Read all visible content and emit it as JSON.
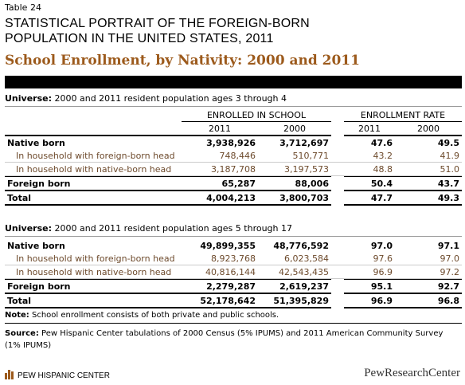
{
  "header": {
    "table_label": "Table 24",
    "title_lines": [
      "STATISTICAL PORTRAIT OF THE FOREIGN-BORN",
      "POPULATION IN THE UNITED STATES, 2011"
    ],
    "subtitle": "School Enrollment, by Nativity: 2000 and 2011"
  },
  "sections": [
    {
      "universe_label": "Universe:",
      "universe_text": "2000 and 2011 resident population ages 3 through 4",
      "column_groups": [
        "ENROLLED IN SCHOOL",
        "ENROLLMENT RATE"
      ],
      "columns": [
        "2011",
        "2000",
        "2011",
        "2000"
      ],
      "rows": [
        [
          "Native born",
          "3,938,926",
          "3,712,697",
          "47.6",
          "49.5"
        ],
        [
          "In household with foreign-born head",
          "748,446",
          "510,771",
          "43.2",
          "41.9"
        ],
        [
          "In household with native-born head",
          "3,187,708",
          "3,197,573",
          "48.8",
          "51.0"
        ],
        [
          "Foreign born",
          "65,287",
          "88,006",
          "50.4",
          "43.7"
        ],
        [
          "Total",
          "4,004,213",
          "3,800,703",
          "47.7",
          "49.3"
        ]
      ]
    },
    {
      "universe_label": "Universe:",
      "universe_text": "2000 and 2011 resident population ages 5 through 17",
      "rows": [
        [
          "Native born",
          "49,899,355",
          "48,776,592",
          "97.0",
          "97.1"
        ],
        [
          "In household with foreign-born head",
          "8,923,768",
          "6,023,584",
          "97.6",
          "97.0"
        ],
        [
          "In household with native-born head",
          "40,816,144",
          "42,543,435",
          "96.9",
          "97.2"
        ],
        [
          "Foreign born",
          "2,279,287",
          "2,619,237",
          "95.1",
          "92.7"
        ],
        [
          "Total",
          "52,178,642",
          "51,395,829",
          "96.9",
          "96.8"
        ]
      ]
    }
  ],
  "note": {
    "label": "Note:",
    "text": "School enrollment consists of both private and public schools."
  },
  "source": {
    "label": "Source:",
    "text": "Pew Hispanic Center tabulations of 2000 Census (5% IPUMS) and 2011 American Community Survey (1% IPUMS)"
  },
  "footer": {
    "left": "PEW HISPANIC CENTER",
    "right": "PewResearchCenter"
  }
}
